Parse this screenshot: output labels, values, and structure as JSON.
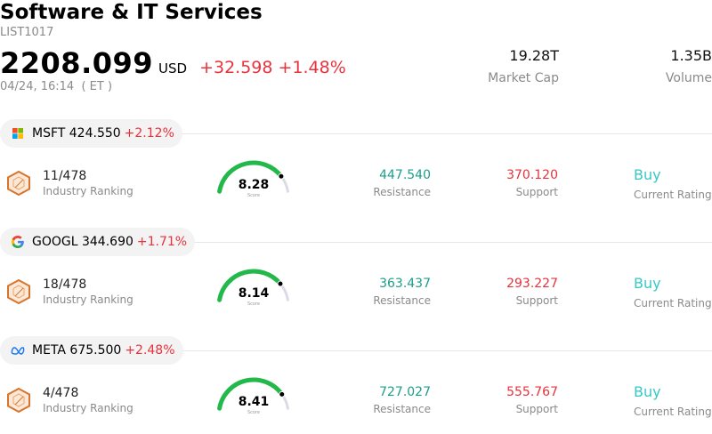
{
  "header": {
    "title": "Software & IT Services",
    "code": "LIST1017",
    "price": "2208.099",
    "currency": "USD",
    "change": "+32.598",
    "change_pct": "+1.48%",
    "time": "04/24, 16:14  ( ET )"
  },
  "stats": {
    "market_cap_value": "19.28T",
    "market_cap_label": "Market Cap",
    "volume_value": "1.35B",
    "volume_label": "Volume"
  },
  "colors": {
    "down_red": "#e8323c",
    "resistance_green": "#1a9e8b",
    "rating_teal": "#36c9c4",
    "gauge_green": "#22b84a",
    "gauge_track": "#d9dbe6"
  },
  "stocks": [
    {
      "logo": "microsoft-logo",
      "ticker_price": "MSFT 424.550",
      "change_pct": "+2.12%",
      "rank": "11/478",
      "rank_label": "Industry Ranking",
      "score": "8.28",
      "score_value": 8.28,
      "score_label": "Score",
      "resistance": "447.540",
      "resistance_label": "Resistance",
      "support": "370.120",
      "support_label": "Support",
      "rating": "Buy",
      "rating_label": "Current Rating"
    },
    {
      "logo": "google-logo",
      "ticker_price": "GOOGL 344.690",
      "change_pct": "+1.71%",
      "rank": "18/478",
      "rank_label": "Industry Ranking",
      "score": "8.14",
      "score_value": 8.14,
      "score_label": "Score",
      "resistance": "363.437",
      "resistance_label": "Resistance",
      "support": "293.227",
      "support_label": "Support",
      "rating": "Buy",
      "rating_label": "Current Rating"
    },
    {
      "logo": "meta-logo",
      "ticker_price": "META 675.500",
      "change_pct": "+2.48%",
      "rank": "4/478",
      "rank_label": "Industry Ranking",
      "score": "8.41",
      "score_value": 8.41,
      "score_label": "Score",
      "resistance": "727.027",
      "resistance_label": "Resistance",
      "support": "555.767",
      "support_label": "Support",
      "rating": "Buy",
      "rating_label": "Current Rating"
    }
  ]
}
